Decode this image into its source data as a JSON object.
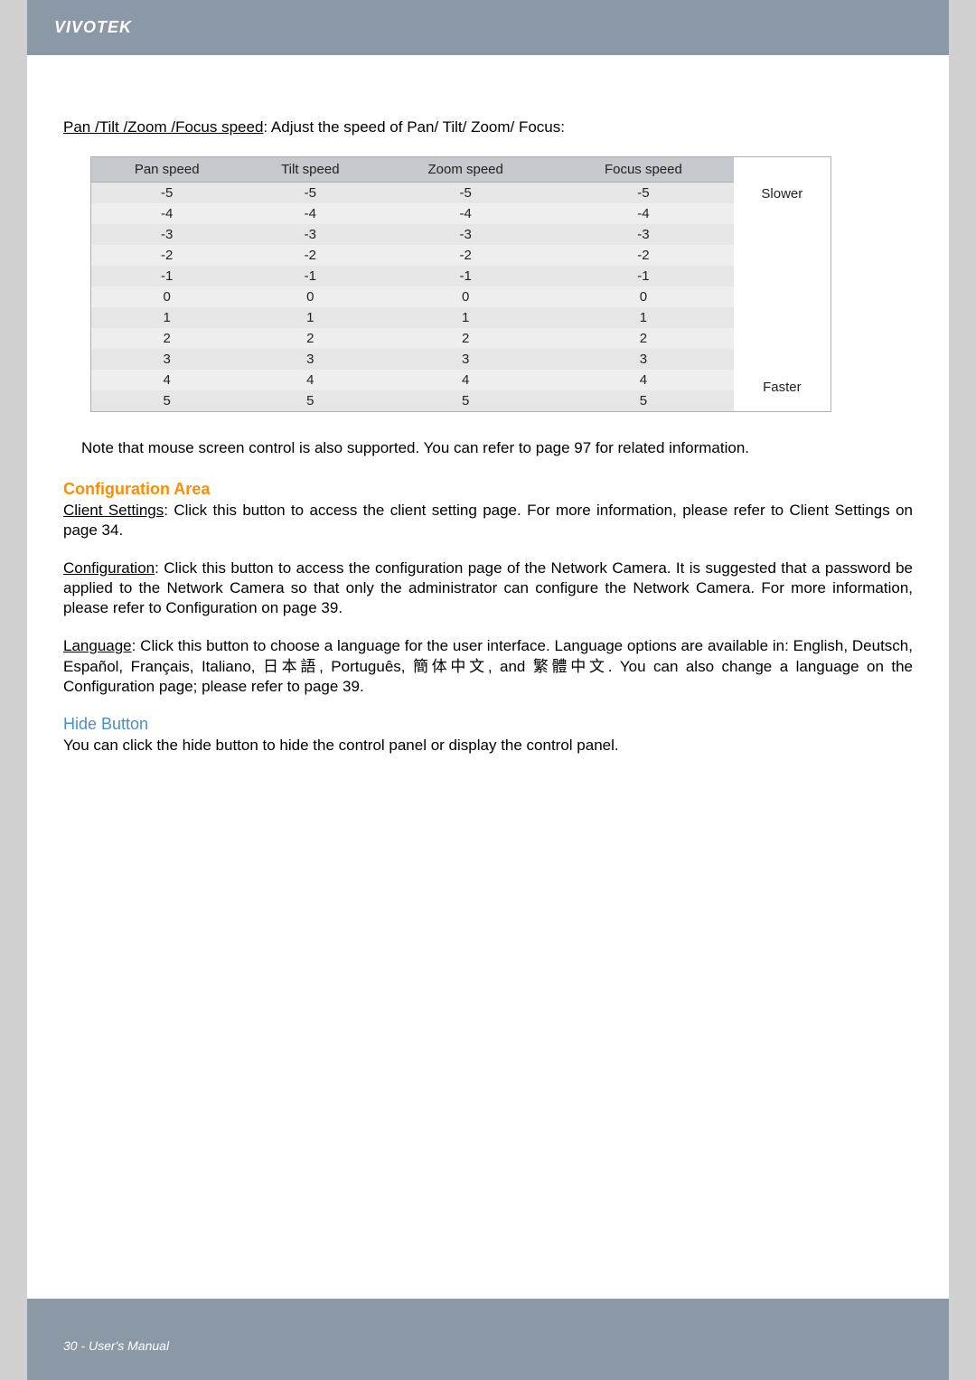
{
  "header": {
    "brand": "VIVOTEK"
  },
  "intro": {
    "underlined": "Pan /Tilt /Zoom /Focus speed",
    "rest": ": Adjust the speed of Pan/ Tilt/ Zoom/ Focus:"
  },
  "speed_table": {
    "headers": [
      "Pan speed",
      "Tilt speed",
      "Zoom speed",
      "Focus speed"
    ],
    "rows": [
      [
        "-5",
        "-5",
        "-5",
        "-5"
      ],
      [
        "-4",
        "-4",
        "-4",
        "-4"
      ],
      [
        "-3",
        "-3",
        "-3",
        "-3"
      ],
      [
        "-2",
        "-2",
        "-2",
        "-2"
      ],
      [
        "-1",
        "-1",
        "-1",
        "-1"
      ],
      [
        "0",
        "0",
        "0",
        "0"
      ],
      [
        "1",
        "1",
        "1",
        "1"
      ],
      [
        "2",
        "2",
        "2",
        "2"
      ],
      [
        "3",
        "3",
        "3",
        "3"
      ],
      [
        "4",
        "4",
        "4",
        "4"
      ],
      [
        "5",
        "5",
        "5",
        "5"
      ]
    ],
    "side_top": "Slower",
    "side_bottom": "Faster",
    "header_bg": "#c5c8cc",
    "row_alt_bg": "#e6e6e6",
    "row_norm_bg": "#eeeeee",
    "border_color": "#b0b0b0",
    "fontsize": 15
  },
  "note": "Note that mouse screen control is also supported. You can refer to page 97 for related information.",
  "config_area": {
    "title": "Configuration Area",
    "client_label": "Client Settings",
    "client_text": ": Click this button to access the client setting page. For more information, please refer to Client Settings on page 34.",
    "configuration_label": "Configuration",
    "configuration_text": ": Click this button to access the configuration page of the Network Camera. It is suggested that a password be applied to the Network Camera so that only the administrator can configure the Network Camera. For more information, please refer to Configuration on page 39.",
    "language_label": "Language",
    "language_text": ": Click this button to choose a language for the user interface. Language options are available in: English, Deutsch, Español, Français, Italiano, 日本語, Português, 簡体中文, and 繁體中文. You can also change a language on the Configuration page; please refer to page 39."
  },
  "hide_button": {
    "title": "Hide Button",
    "text": "You can click the hide button to hide the control panel or display the control panel."
  },
  "footer": {
    "text": "30 - User's Manual"
  },
  "colors": {
    "page_bg": "#ffffff",
    "outer_bg": "#d0d0d0",
    "header_bar": "#8b98a5",
    "orange": "#ff8c00",
    "blue": "#4a8fc7"
  }
}
